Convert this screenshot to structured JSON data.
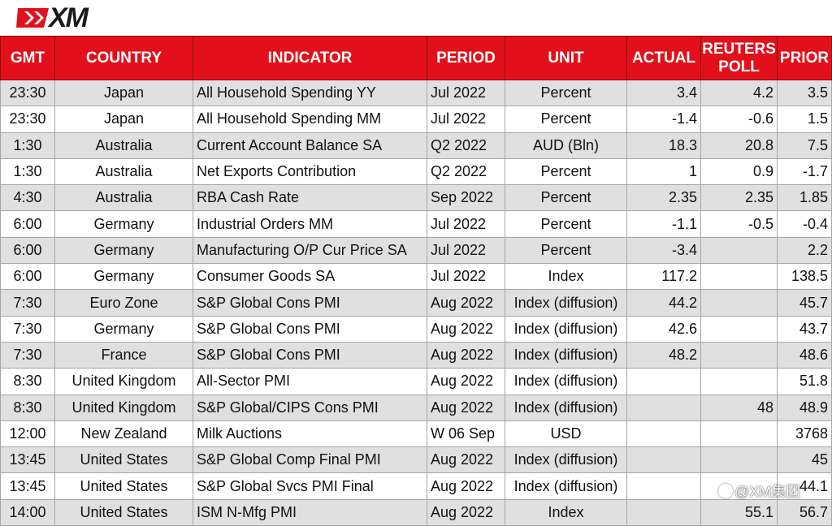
{
  "brand": {
    "logo_text": "XM",
    "accent": "#e3101b"
  },
  "headers": {
    "gmt": "GMT",
    "country": "COUNTRY",
    "indicator": "INDICATOR",
    "period": "PERIOD",
    "unit": "UNIT",
    "actual": "ACTUAL",
    "poll_line1": "REUTERS",
    "poll_line2": "POLL",
    "prior": "PRIOR"
  },
  "rows": [
    {
      "gmt": "23:30",
      "country": "Japan",
      "indicator": "All Household Spending YY",
      "period": "Jul 2022",
      "unit": "Percent",
      "actual": "3.4",
      "poll": "4.2",
      "prior": "3.5"
    },
    {
      "gmt": "23:30",
      "country": "Japan",
      "indicator": "All Household Spending MM",
      "period": "Jul 2022",
      "unit": "Percent",
      "actual": "-1.4",
      "poll": "-0.6",
      "prior": "1.5"
    },
    {
      "gmt": "1:30",
      "country": "Australia",
      "indicator": "Current Account Balance SA",
      "period": "Q2 2022",
      "unit": "AUD (Bln)",
      "actual": "18.3",
      "poll": "20.8",
      "prior": "7.5"
    },
    {
      "gmt": "1:30",
      "country": "Australia",
      "indicator": "Net Exports Contribution",
      "period": "Q2 2022",
      "unit": "Percent",
      "actual": "1",
      "poll": "0.9",
      "prior": "-1.7"
    },
    {
      "gmt": "4:30",
      "country": "Australia",
      "indicator": "RBA Cash Rate",
      "period": "Sep 2022",
      "unit": "Percent",
      "actual": "2.35",
      "poll": "2.35",
      "prior": "1.85"
    },
    {
      "gmt": "6:00",
      "country": "Germany",
      "indicator": "Industrial Orders MM",
      "period": "Jul 2022",
      "unit": "Percent",
      "actual": "-1.1",
      "poll": "-0.5",
      "prior": "-0.4"
    },
    {
      "gmt": "6:00",
      "country": "Germany",
      "indicator": "Manufacturing O/P Cur Price SA",
      "period": "Jul 2022",
      "unit": "Percent",
      "actual": "-3.4",
      "poll": "",
      "prior": "2.2"
    },
    {
      "gmt": "6:00",
      "country": "Germany",
      "indicator": "Consumer Goods SA",
      "period": "Jul 2022",
      "unit": "Index",
      "actual": "117.2",
      "poll": "",
      "prior": "138.5"
    },
    {
      "gmt": "7:30",
      "country": "Euro Zone",
      "indicator": "S&P Global Cons PMI",
      "period": "Aug 2022",
      "unit": "Index (diffusion)",
      "actual": "44.2",
      "poll": "",
      "prior": "45.7"
    },
    {
      "gmt": "7:30",
      "country": "Germany",
      "indicator": "S&P Global Cons PMI",
      "period": "Aug 2022",
      "unit": "Index (diffusion)",
      "actual": "42.6",
      "poll": "",
      "prior": "43.7"
    },
    {
      "gmt": "7:30",
      "country": "France",
      "indicator": "S&P Global Cons PMI",
      "period": "Aug 2022",
      "unit": "Index (diffusion)",
      "actual": "48.2",
      "poll": "",
      "prior": "48.6"
    },
    {
      "gmt": "8:30",
      "country": "United Kingdom",
      "indicator": "All-Sector PMI",
      "period": "Aug 2022",
      "unit": "Index (diffusion)",
      "actual": "",
      "poll": "",
      "prior": "51.8"
    },
    {
      "gmt": "8:30",
      "country": "United Kingdom",
      "indicator": "S&P Global/CIPS Cons PMI",
      "period": "Aug 2022",
      "unit": "Index (diffusion)",
      "actual": "",
      "poll": "48",
      "prior": "48.9"
    },
    {
      "gmt": "12:00",
      "country": "New Zealand",
      "indicator": "Milk Auctions",
      "period": "W 06 Sep",
      "unit": "USD",
      "actual": "",
      "poll": "",
      "prior": "3768"
    },
    {
      "gmt": "13:45",
      "country": "United States",
      "indicator": "S&P Global Comp Final PMI",
      "period": "Aug 2022",
      "unit": "Index (diffusion)",
      "actual": "",
      "poll": "",
      "prior": "45"
    },
    {
      "gmt": "13:45",
      "country": "United States",
      "indicator": "S&P Global Svcs PMI Final",
      "period": "Aug 2022",
      "unit": "Index (diffusion)",
      "actual": "",
      "poll": "",
      "prior": "44.1"
    },
    {
      "gmt": "14:00",
      "country": "United States",
      "indicator": "ISM N-Mfg PMI",
      "period": "Aug 2022",
      "unit": "Index",
      "actual": "",
      "poll": "55.1",
      "prior": "56.7"
    }
  ],
  "watermark": {
    "text": "@XM集团"
  }
}
